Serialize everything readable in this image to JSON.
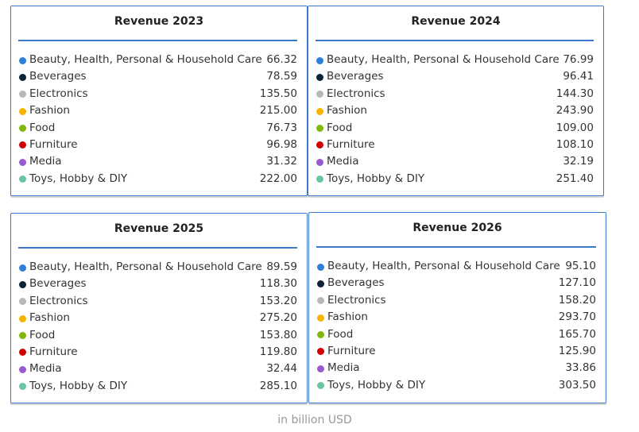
{
  "chart_data": {
    "type": "table",
    "unit_caption": "in billion USD",
    "categories": [
      "Beauty, Health, Personal & Household Care",
      "Beverages",
      "Electronics",
      "Fashion",
      "Food",
      "Furniture",
      "Media",
      "Toys, Hobby & DIY"
    ],
    "category_colors": [
      "#2f7ed8",
      "#0d233a",
      "#b8b8b8",
      "#f5b400",
      "#7fb80e",
      "#d20000",
      "#9b59d0",
      "#6cc3a0"
    ],
    "panels": [
      {
        "title": "Revenue 2023",
        "values": [
          "66.32",
          "78.59",
          "135.50",
          "215.00",
          "76.73",
          "96.98",
          "31.32",
          "222.00"
        ]
      },
      {
        "title": "Revenue 2024",
        "values": [
          "76.99",
          "96.41",
          "144.30",
          "243.90",
          "109.00",
          "108.10",
          "32.19",
          "251.40"
        ]
      },
      {
        "title": "Revenue 2025",
        "values": [
          "89.59",
          "118.30",
          "153.20",
          "275.20",
          "153.80",
          "119.80",
          "32.44",
          "285.10"
        ]
      },
      {
        "title": "Revenue 2026",
        "values": [
          "95.10",
          "127.10",
          "158.20",
          "293.70",
          "165.70",
          "125.90",
          "33.86",
          "303.50"
        ]
      }
    ]
  }
}
